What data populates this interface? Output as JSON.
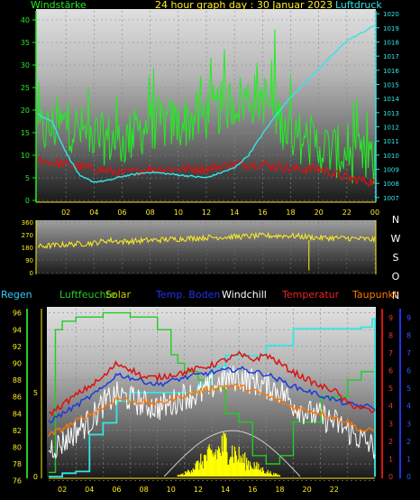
{
  "header": {
    "left_label": "Windstärke",
    "title": "24 hour graph day : 30 Januar 2023",
    "right_label": "Luftdruck"
  },
  "colors": {
    "wind": "#22ee22",
    "pressure": "#33e6e6",
    "temperature": "#dd1111",
    "direction": "#ffee22",
    "humidity_axis": "#22cc22",
    "solar": "#ffff00",
    "soil": "#1133cc",
    "windchill": "#ffffff",
    "dewpoint": "#ff7700",
    "rain_axis": "#33ccff",
    "orange_label": "#ff8800"
  },
  "chart_data": [
    {
      "type": "line",
      "title": "24 hour graph day : 30 Januar 2023",
      "x_ticks": [
        "02",
        "04",
        "06",
        "08",
        "10",
        "12",
        "14",
        "16",
        "18",
        "20",
        "22",
        "00"
      ],
      "left_axis": {
        "label": "Windstärke",
        "ticks": [
          "0",
          "5",
          "10",
          "15",
          "20",
          "25",
          "30",
          "35",
          "40"
        ],
        "range": [
          0,
          42
        ]
      },
      "right_axis": {
        "label": "Luftdruck",
        "ticks": [
          "1007",
          "1008",
          "1009",
          "1010",
          "1011",
          "1012",
          "1013",
          "1014",
          "1015",
          "1016",
          "1017",
          "1018",
          "1019",
          "1020"
        ],
        "range": [
          1006.8,
          1020.2
        ]
      },
      "series": [
        {
          "name": "Windstärke",
          "axis": "left",
          "x": [
            0,
            2,
            4,
            6,
            8,
            10,
            12,
            14,
            16,
            18,
            20,
            22,
            24
          ],
          "values": [
            15,
            17,
            14,
            13,
            17,
            17,
            19,
            22,
            23,
            15,
            12,
            10,
            8
          ]
        },
        {
          "name": "Windstärke",
          "axis": "left",
          "x": [
            0,
            2,
            4,
            6,
            8,
            10,
            12,
            14,
            16,
            18,
            20,
            22,
            24
          ],
          "values": [
            9,
            8,
            7,
            6,
            7,
            7,
            7,
            8,
            8,
            7,
            7,
            5,
            4
          ]
        },
        {
          "name": "Luftdruck",
          "axis": "right",
          "x": [
            0,
            1,
            2,
            3,
            4,
            5,
            6,
            8,
            10,
            12,
            14,
            15,
            16,
            17,
            18,
            19,
            20,
            21,
            22,
            23,
            24
          ],
          "values": [
            1012.9,
            1012.4,
            1010.2,
            1008.5,
            1008.1,
            1008.2,
            1008.5,
            1008.8,
            1008.6,
            1008.4,
            1009.1,
            1010,
            1011.5,
            1012.9,
            1014.1,
            1015.1,
            1016.1,
            1017.1,
            1018.1,
            1018.6,
            1019.2
          ]
        }
      ]
    },
    {
      "type": "line",
      "y_ticks": [
        "360",
        "270",
        "180",
        "90",
        "0"
      ],
      "range": [
        0,
        360
      ],
      "compass_labels": [
        "N",
        "W",
        "S",
        "O",
        "N"
      ],
      "series": [
        {
          "name": "Windrichtung",
          "x": [
            0,
            2,
            4,
            5,
            6,
            8,
            10,
            12,
            14,
            16,
            18,
            20,
            22,
            24
          ],
          "values": [
            185,
            200,
            210,
            230,
            220,
            230,
            240,
            250,
            255,
            262,
            262,
            248,
            245,
            235
          ]
        }
      ]
    },
    {
      "type": "line",
      "legend": [
        "Regen",
        "Luftfeuchte",
        "Solar",
        "Temp. Boden",
        "Windchill",
        "Temperatur",
        "Taupunkt"
      ],
      "humidity_ticks": [
        "76",
        "78",
        "80",
        "82",
        "84",
        "86",
        "88",
        "90",
        "92",
        "94",
        "96"
      ],
      "humidity_range": [
        76.5,
        96.5
      ],
      "rain_ticks": [
        "0",
        "5"
      ],
      "rain_range": [
        0,
        10
      ],
      "right_ticks_red": [
        "0",
        "1",
        "2",
        "3",
        "4",
        "5",
        "6",
        "7",
        "8",
        "9"
      ],
      "right_ticks_blue": [
        "0",
        "1",
        "2",
        "3",
        "4",
        "5",
        "6",
        "7",
        "8",
        "9"
      ],
      "right_range": [
        0,
        9.5
      ],
      "series": [
        {
          "name": "Luftfeuchte",
          "axis": "humidity",
          "x": [
            0,
            0.5,
            1,
            2,
            3,
            4,
            5,
            6,
            7,
            8,
            9,
            9.5,
            10,
            11,
            12,
            13,
            14,
            15,
            16,
            17,
            18,
            20,
            22,
            23,
            24
          ],
          "values": [
            77,
            94,
            95,
            95.5,
            95.5,
            96,
            96,
            95.5,
            95.5,
            94,
            91,
            90,
            89,
            88,
            87,
            84,
            83,
            79,
            78,
            79,
            83,
            86,
            88,
            89,
            86
          ]
        },
        {
          "name": "Regen",
          "axis": "rain",
          "x": [
            0,
            1,
            2,
            3,
            4,
            5,
            6,
            8,
            10,
            11,
            12,
            13,
            14,
            16,
            18,
            20,
            22,
            23,
            23.8,
            24
          ],
          "values": [
            0,
            0.2,
            0.3,
            2.5,
            3.2,
            4.5,
            5,
            5,
            5,
            5.5,
            6.5,
            7.2,
            7.2,
            7.8,
            8.8,
            8.8,
            8.8,
            8.9,
            9.4,
            0
          ]
        },
        {
          "name": "Temperatur",
          "axis": "right",
          "x": [
            0,
            2,
            4,
            5,
            6,
            7,
            8,
            10,
            12,
            13,
            14,
            15,
            16,
            18,
            20,
            21,
            22,
            23,
            24
          ],
          "values": [
            3.5,
            4.6,
            5.6,
            6.4,
            6.1,
            5.6,
            5.6,
            5.9,
            6.3,
            6.6,
            6.9,
            6.6,
            6.9,
            5.9,
            5.1,
            4.9,
            4.1,
            3.9,
            3.6
          ]
        },
        {
          "name": "Temp. Boden",
          "axis": "right",
          "x": [
            0,
            2,
            4,
            5,
            6,
            8,
            10,
            12,
            14,
            16,
            18,
            20,
            22,
            24
          ],
          "values": [
            3.1,
            4,
            5,
            5.8,
            5.6,
            5.2,
            5.6,
            5.9,
            6.1,
            5.8,
            5.1,
            4.6,
            4.1,
            3.9
          ]
        },
        {
          "name": "Taupunkt",
          "axis": "right",
          "x": [
            0,
            2,
            4,
            5,
            6,
            8,
            10,
            12,
            13,
            14,
            16,
            18,
            20,
            22,
            23,
            24
          ],
          "values": [
            2.3,
            3.1,
            3.9,
            4.4,
            4.3,
            4.1,
            4.6,
            5,
            5.1,
            5.1,
            4.6,
            3.9,
            3.6,
            3.1,
            2.6,
            2.6
          ]
        },
        {
          "name": "Windchill",
          "axis": "right",
          "x": [
            0,
            1,
            2,
            3,
            4,
            5,
            6,
            7,
            8,
            9,
            10,
            11,
            12,
            13,
            14,
            15,
            16,
            17,
            18,
            19,
            20,
            21,
            22,
            23,
            24
          ],
          "values": [
            1.6,
            1.9,
            2.6,
            3.1,
            4.1,
            4.6,
            4.4,
            4.1,
            3.9,
            4.1,
            4.6,
            4.6,
            5.1,
            5.5,
            5.6,
            5.4,
            5.1,
            4.9,
            4.1,
            3.6,
            3.4,
            3.1,
            2.6,
            2.1,
            1.6
          ]
        },
        {
          "name": "Solar",
          "axis": "right",
          "x": [
            9.5,
            10,
            10.5,
            11,
            11.5,
            12,
            12.5,
            13,
            13.5,
            14,
            14.5,
            15,
            15.5,
            16,
            16.5,
            17
          ],
          "values": [
            0.1,
            0.2,
            0.6,
            0.9,
            1.4,
            1.6,
            1.9,
            2.4,
            1.9,
            1.5,
            1.1,
            0.9,
            0.6,
            0.4,
            0.2,
            0.1
          ]
        }
      ]
    }
  ],
  "panel3_legend": {
    "regen": "Regen",
    "luftfeuchte": "Luftfeuchte",
    "solar": "Solar",
    "temp_boden": "Temp. Boden",
    "windchill": "Windchill",
    "temperatur": "Temperatur",
    "taupunkt": "Taupunkt"
  }
}
